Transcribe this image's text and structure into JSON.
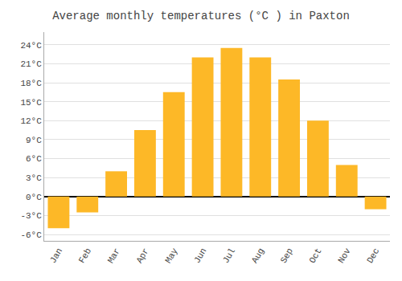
{
  "chart_data": {
    "type": "bar",
    "title": "Average monthly temperatures (°C ) in Paxton",
    "categories": [
      "Jan",
      "Feb",
      "Mar",
      "Apr",
      "May",
      "Jun",
      "Jul",
      "Aug",
      "Sep",
      "Oct",
      "Nov",
      "Dec"
    ],
    "values": [
      -5.0,
      -2.5,
      4.0,
      10.5,
      16.5,
      22.0,
      23.5,
      22.0,
      18.5,
      12.0,
      5.0,
      -2.0
    ],
    "color": "#FDB827",
    "ylim": [
      -7,
      26
    ],
    "yticks": [
      {
        "value": -6,
        "label": "-6°C"
      },
      {
        "value": -3,
        "label": "-3°C"
      },
      {
        "value": 0,
        "label": "0°C"
      },
      {
        "value": 3,
        "label": "3°C"
      },
      {
        "value": 6,
        "label": "6°C"
      },
      {
        "value": 9,
        "label": "9°C"
      },
      {
        "value": 12,
        "label": "12°C"
      },
      {
        "value": 15,
        "label": "15°C"
      },
      {
        "value": 18,
        "label": "18°C"
      },
      {
        "value": 21,
        "label": "21°C"
      },
      {
        "value": 24,
        "label": "24°C"
      }
    ],
    "grid": true
  }
}
